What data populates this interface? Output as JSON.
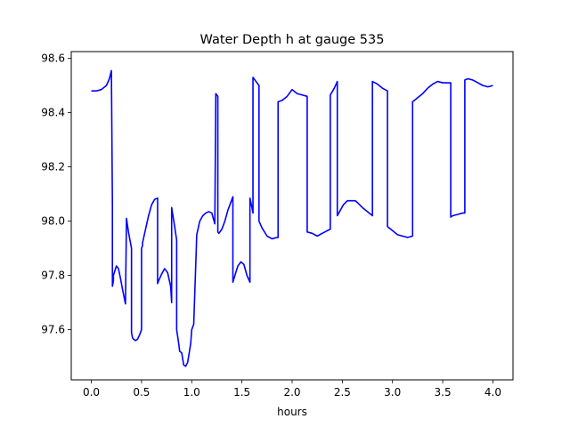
{
  "chart_data": {
    "type": "line",
    "title": "Water Depth h at gauge 535",
    "xlabel": "hours",
    "ylabel": "",
    "xlim": [
      -0.2,
      4.2
    ],
    "ylim": [
      97.415,
      98.625
    ],
    "xticks": [
      0.0,
      0.5,
      1.0,
      1.5,
      2.0,
      2.5,
      3.0,
      3.5,
      4.0
    ],
    "xtick_labels": [
      "0.0",
      "0.5",
      "1.0",
      "1.5",
      "2.0",
      "2.5",
      "3.0",
      "3.5",
      "4.0"
    ],
    "yticks": [
      97.6,
      97.8,
      98.0,
      98.2,
      98.4,
      98.6
    ],
    "ytick_labels": [
      "97.6",
      "97.8",
      "98.0",
      "98.2",
      "98.4",
      "98.6"
    ],
    "grid": false,
    "series": [
      {
        "color": "#0000ff",
        "x": [
          0.0,
          0.05,
          0.1,
          0.15,
          0.18,
          0.2,
          0.21,
          0.21,
          0.22,
          0.22,
          0.25,
          0.27,
          0.29,
          0.31,
          0.34,
          0.35,
          0.37,
          0.4,
          0.4,
          0.41,
          0.42,
          0.44,
          0.46,
          0.48,
          0.5,
          0.5,
          0.51,
          0.51,
          0.54,
          0.57,
          0.6,
          0.63,
          0.66,
          0.66,
          0.67,
          0.7,
          0.73,
          0.76,
          0.79,
          0.8,
          0.8,
          0.83,
          0.85,
          0.85,
          0.87,
          0.88,
          0.9,
          0.92,
          0.94,
          0.96,
          0.99,
          1.0,
          1.02,
          1.05,
          1.08,
          1.11,
          1.14,
          1.17,
          1.2,
          1.23,
          1.24,
          1.24,
          1.26,
          1.26,
          1.27,
          1.3,
          1.33,
          1.36,
          1.38,
          1.41,
          1.41,
          1.43,
          1.46,
          1.49,
          1.52,
          1.55,
          1.58,
          1.58,
          1.6,
          1.61,
          1.61,
          1.65,
          1.67,
          1.67,
          1.7,
          1.75,
          1.8,
          1.85,
          1.86,
          1.86,
          1.9,
          1.95,
          2.0,
          2.05,
          2.1,
          2.15,
          2.15,
          2.2,
          2.25,
          2.3,
          2.35,
          2.38,
          2.38,
          2.42,
          2.45,
          2.45,
          2.48,
          2.51,
          2.55,
          2.6,
          2.63,
          2.66,
          2.7,
          2.75,
          2.8,
          2.8,
          2.85,
          2.9,
          2.95,
          2.95,
          3.0,
          3.05,
          3.1,
          3.15,
          3.2,
          3.2,
          3.25,
          3.3,
          3.35,
          3.4,
          3.45,
          3.5,
          3.55,
          3.58,
          3.58,
          3.6,
          3.65,
          3.7,
          3.72,
          3.72,
          3.75,
          3.8,
          3.85,
          3.9,
          3.95,
          4.0
        ],
        "y": [
          98.48,
          98.48,
          98.485,
          98.5,
          98.525,
          98.555,
          98.06,
          97.76,
          97.78,
          97.8,
          97.835,
          97.825,
          97.79,
          97.75,
          97.695,
          98.01,
          97.96,
          97.9,
          97.59,
          97.57,
          97.565,
          97.56,
          97.565,
          97.58,
          97.6,
          97.9,
          97.91,
          97.92,
          97.97,
          98.02,
          98.06,
          98.08,
          98.085,
          97.77,
          97.78,
          97.805,
          97.825,
          97.81,
          97.76,
          97.7,
          98.05,
          97.98,
          97.93,
          97.6,
          97.55,
          97.52,
          97.515,
          97.47,
          97.465,
          97.48,
          97.55,
          97.6,
          97.62,
          97.95,
          98.0,
          98.02,
          98.03,
          98.035,
          98.03,
          97.99,
          98.47,
          98.47,
          98.46,
          97.96,
          97.955,
          97.97,
          98.0,
          98.04,
          98.06,
          98.09,
          97.775,
          97.8,
          97.835,
          97.85,
          97.84,
          97.8,
          97.775,
          98.085,
          98.05,
          98.03,
          98.53,
          98.51,
          98.5,
          98.0,
          97.975,
          97.945,
          97.935,
          97.94,
          97.94,
          98.44,
          98.445,
          98.46,
          98.485,
          98.47,
          98.465,
          98.46,
          97.96,
          97.955,
          97.945,
          97.955,
          97.965,
          97.97,
          98.465,
          98.49,
          98.515,
          98.02,
          98.04,
          98.06,
          98.075,
          98.075,
          98.075,
          98.065,
          98.05,
          98.035,
          98.02,
          98.515,
          98.505,
          98.49,
          98.48,
          97.98,
          97.965,
          97.95,
          97.945,
          97.94,
          97.945,
          98.44,
          98.455,
          98.47,
          98.49,
          98.505,
          98.515,
          98.51,
          98.51,
          98.51,
          98.015,
          98.02,
          98.025,
          98.03,
          98.03,
          98.52,
          98.525,
          98.52,
          98.51,
          98.5,
          98.495,
          98.5
        ]
      }
    ]
  }
}
